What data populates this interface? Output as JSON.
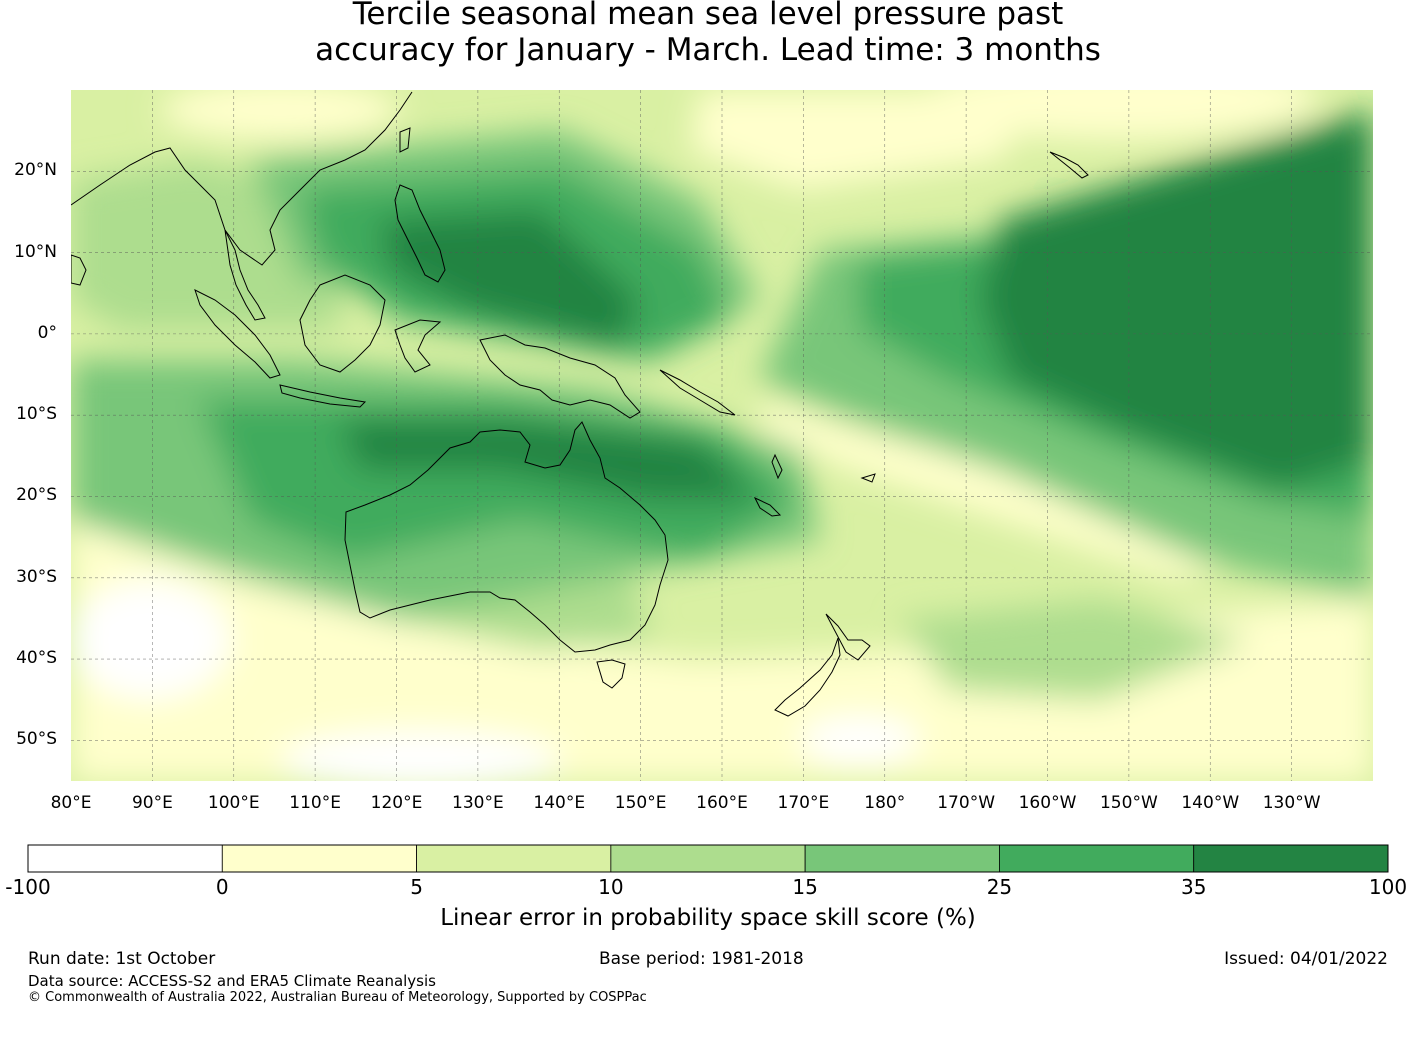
{
  "title": {
    "line1": "Tercile seasonal mean sea level pressure past",
    "line2": "accuracy for January - March. Lead time: 3 months"
  },
  "map": {
    "projection": "equirectangular",
    "lon_range": [
      80,
      240
    ],
    "lat_range": [
      -55,
      30
    ],
    "lat_labels": [
      "20°N",
      "10°N",
      "0°",
      "10°S",
      "20°S",
      "30°S",
      "40°S",
      "50°S"
    ],
    "lat_values": [
      20,
      10,
      0,
      -10,
      -20,
      -30,
      -40,
      -50
    ],
    "lon_labels": [
      "80°E",
      "90°E",
      "100°E",
      "110°E",
      "120°E",
      "130°E",
      "140°E",
      "150°E",
      "160°E",
      "170°E",
      "180°",
      "170°W",
      "160°W",
      "150°W",
      "140°W",
      "130°W"
    ],
    "lon_values": [
      80,
      90,
      100,
      110,
      120,
      130,
      140,
      150,
      160,
      170,
      180,
      190,
      200,
      210,
      220,
      230
    ],
    "regions": [
      "Australia",
      "New Zealand",
      "Indonesia",
      "Philippines",
      "Papua New Guinea",
      "Pacific Islands"
    ]
  },
  "colorbar": {
    "ticks": [
      "-100",
      "0",
      "5",
      "10",
      "15",
      "25",
      "35",
      "100"
    ],
    "colors": [
      "#ffffff",
      "#ffffcc",
      "#d9f0a3",
      "#addd8e",
      "#78c679",
      "#41ab5d",
      "#238443"
    ],
    "label": "Linear error in probability space skill score (%)"
  },
  "footer": {
    "run_date": "Run date: 1st October",
    "base_period": "Base period: 1981-2018",
    "issued": "Issued: 04/01/2022",
    "data_source": "Data source: ACCESS-S2 and ERA5 Climate Reanalysis",
    "copyright": "© Commonwealth of Australia 2022, Australian Bureau of Meteorology, Supported by COSPPac"
  }
}
